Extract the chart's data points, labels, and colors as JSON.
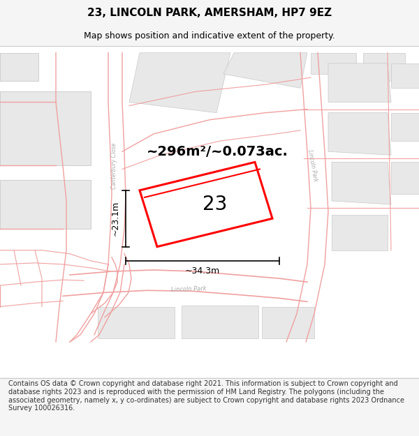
{
  "title": "23, LINCOLN PARK, AMERSHAM, HP7 9EZ",
  "subtitle": "Map shows position and indicative extent of the property.",
  "area_text": "~296m²/~0.073ac.",
  "number_label": "23",
  "dim_horizontal": "~34.3m",
  "dim_vertical": "~23.1m",
  "footer_text": "Contains OS data © Crown copyright and database right 2021. This information is subject to Crown copyright and database rights 2023 and is reproduced with the permission of HM Land Registry. The polygons (including the associated geometry, namely x, y co-ordinates) are subject to Crown copyright and database rights 2023 Ordnance Survey 100026316.",
  "bg_color": "#f5f5f5",
  "map_bg": "#ffffff",
  "road_color": "#f0c0c0",
  "building_color": "#e8e8e8",
  "highlight_color": "#ff0000",
  "dim_color": "#000000",
  "title_fontsize": 11,
  "subtitle_fontsize": 9,
  "area_fontsize": 14,
  "number_fontsize": 20,
  "dim_fontsize": 9,
  "footer_fontsize": 7,
  "canterbury_close_label": "Canterbury Close",
  "lincoln_park_label_bottom": "Lincoln Park",
  "lincoln_park_label_right": "Lincoln Park"
}
